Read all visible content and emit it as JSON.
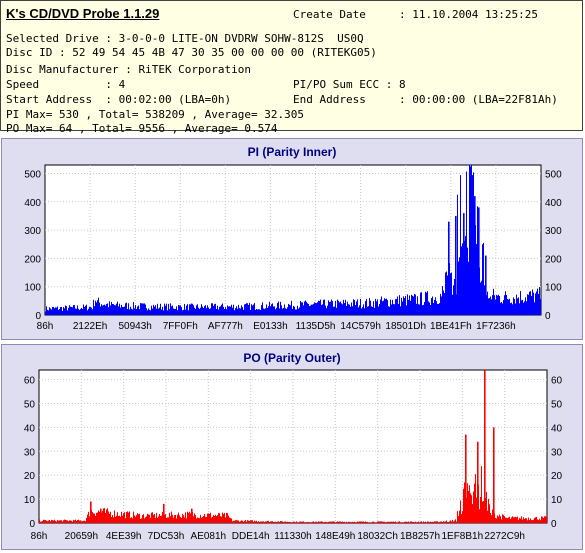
{
  "header": {
    "app_title": "K's CD/DVD Probe 1.1.29",
    "create_date": "Create Date     : 11.10.2004 13:25:25",
    "selected_drive": "Selected Drive : 3-0-0-0 LITE-ON DVDRW SOHW-812S  US0Q",
    "disc_id": "Disc ID : 52 49 54 45 4B 47 30 35 00 00 00 00 (RITEKG05)",
    "disc_manufacturer": "Disc Manufacturer : RiTEK Corporation",
    "speed": "Speed          : 4",
    "pipo_sum": "PI/PO Sum ECC : 8",
    "start_address": "Start Address  : 00:02:00 (LBA=0h)",
    "end_address": "End Address     : 00:00:00 (LBA=22F81Ah)",
    "pi_stats": "PI Max= 530 , Total= 538209 , Average= 32.305",
    "po_stats": "PO Max= 64 , Total= 9556 , Average= 0.574"
  },
  "chart_data": [
    {
      "type": "bar",
      "title": "PI (Parity Inner)",
      "color": "#0000ff",
      "ylim": [
        0,
        530
      ],
      "yticks": [
        0,
        100,
        200,
        300,
        400,
        500
      ],
      "xtick_labels": [
        "86h",
        "2122Eh",
        "50943h",
        "7FF0Fh",
        "AF777h",
        "E0133h",
        "1135D5h",
        "14C579h",
        "18501Dh",
        "1BE41Fh",
        "1F7236h"
      ],
      "grid": true,
      "profile": [
        [
          0.0,
          22
        ],
        [
          0.05,
          25
        ],
        [
          0.095,
          28
        ],
        [
          0.1,
          60
        ],
        [
          0.105,
          45
        ],
        [
          0.13,
          35
        ],
        [
          0.2,
          30
        ],
        [
          0.3,
          28
        ],
        [
          0.4,
          30
        ],
        [
          0.5,
          35
        ],
        [
          0.6,
          40
        ],
        [
          0.65,
          42
        ],
        [
          0.7,
          50
        ],
        [
          0.75,
          55
        ],
        [
          0.78,
          62
        ],
        [
          0.8,
          68
        ],
        [
          0.81,
          100
        ],
        [
          0.82,
          190
        ],
        [
          0.83,
          250
        ],
        [
          0.84,
          320
        ],
        [
          0.85,
          310
        ],
        [
          0.86,
          330
        ],
        [
          0.87,
          280
        ],
        [
          0.88,
          200
        ],
        [
          0.885,
          120
        ],
        [
          0.89,
          70
        ],
        [
          0.92,
          62
        ],
        [
          0.96,
          65
        ],
        [
          1.0,
          70
        ]
      ],
      "spikes": [
        [
          0.812,
          330
        ],
        [
          0.826,
          350
        ],
        [
          0.842,
          360
        ],
        [
          0.856,
          525
        ],
        [
          0.864,
          420
        ],
        [
          0.873,
          380
        ],
        [
          0.888,
          210
        ]
      ]
    },
    {
      "type": "bar",
      "title": "PO (Parity Outer)",
      "color": "#ff0000",
      "ylim": [
        0,
        64
      ],
      "yticks": [
        0,
        10,
        20,
        30,
        40,
        50,
        60
      ],
      "xtick_labels": [
        "86h",
        "20659h",
        "4EE39h",
        "7DC53h",
        "AE081h",
        "DDE14h",
        "111330h",
        "148E49h",
        "18032Ch",
        "1B8257h",
        "1EF8B1h",
        "2272C9h"
      ],
      "grid": true,
      "profile": [
        [
          0.0,
          1
        ],
        [
          0.09,
          1
        ],
        [
          0.1,
          5
        ],
        [
          0.15,
          4
        ],
        [
          0.2,
          3
        ],
        [
          0.3,
          3.5
        ],
        [
          0.37,
          3
        ],
        [
          0.38,
          1
        ],
        [
          0.5,
          0.5
        ],
        [
          0.6,
          0.5
        ],
        [
          0.7,
          0.5
        ],
        [
          0.78,
          0.5
        ],
        [
          0.82,
          1
        ],
        [
          0.83,
          8
        ],
        [
          0.85,
          14
        ],
        [
          0.87,
          16
        ],
        [
          0.88,
          12
        ],
        [
          0.89,
          4
        ],
        [
          0.92,
          2
        ],
        [
          1.0,
          2
        ]
      ],
      "spikes": [
        [
          0.1,
          9
        ],
        [
          0.12,
          6
        ],
        [
          0.245,
          8
        ],
        [
          0.3,
          6
        ],
        [
          0.838,
          37
        ],
        [
          0.862,
          34
        ],
        [
          0.875,
          64
        ],
        [
          0.893,
          40
        ]
      ]
    }
  ]
}
